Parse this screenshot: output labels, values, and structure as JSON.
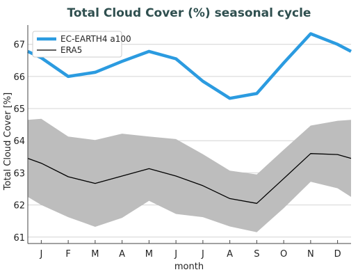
{
  "chart_data": {
    "type": "line",
    "title": "Total Cloud Cover (%) seasonal cycle",
    "xlabel": "month",
    "ylabel": "Total Cloud Cover [%]",
    "x_tick_labels": [
      "J",
      "F",
      "M",
      "A",
      "M",
      "J",
      "J",
      "A",
      "S",
      "O",
      "N",
      "D"
    ],
    "x_values": [
      0,
      0.5,
      1.5,
      2.5,
      3.5,
      4.5,
      5.5,
      6.5,
      7.5,
      8.5,
      9.5,
      10.5,
      11.5,
      12
    ],
    "y_ticks": [
      61,
      62,
      63,
      64,
      65,
      66,
      67
    ],
    "ylim": [
      60.8,
      67.6
    ],
    "grid": "horizontal",
    "legend_position": "top-left",
    "series": [
      {
        "name": "EC-EARTH4 a100",
        "color": "#2b9be0",
        "values": [
          66.78,
          66.58,
          66.0,
          66.13,
          66.47,
          66.78,
          66.55,
          65.85,
          65.32,
          65.47,
          66.42,
          67.33,
          67.0,
          66.78
        ]
      },
      {
        "name": "ERA5",
        "color": "#000000",
        "values": [
          63.45,
          63.3,
          62.88,
          62.67,
          62.9,
          63.13,
          62.9,
          62.6,
          62.2,
          62.05,
          62.82,
          63.6,
          63.57,
          63.45
        ]
      }
    ],
    "band": {
      "color": "#bdbdbd",
      "upper": [
        64.65,
        64.68,
        64.13,
        64.02,
        64.22,
        64.13,
        64.05,
        63.58,
        63.07,
        62.95,
        63.72,
        64.47,
        64.62,
        64.65
      ],
      "lower": [
        62.25,
        62.0,
        61.62,
        61.32,
        61.6,
        62.13,
        61.72,
        61.62,
        61.33,
        61.15,
        61.9,
        62.72,
        62.52,
        62.25
      ]
    }
  }
}
